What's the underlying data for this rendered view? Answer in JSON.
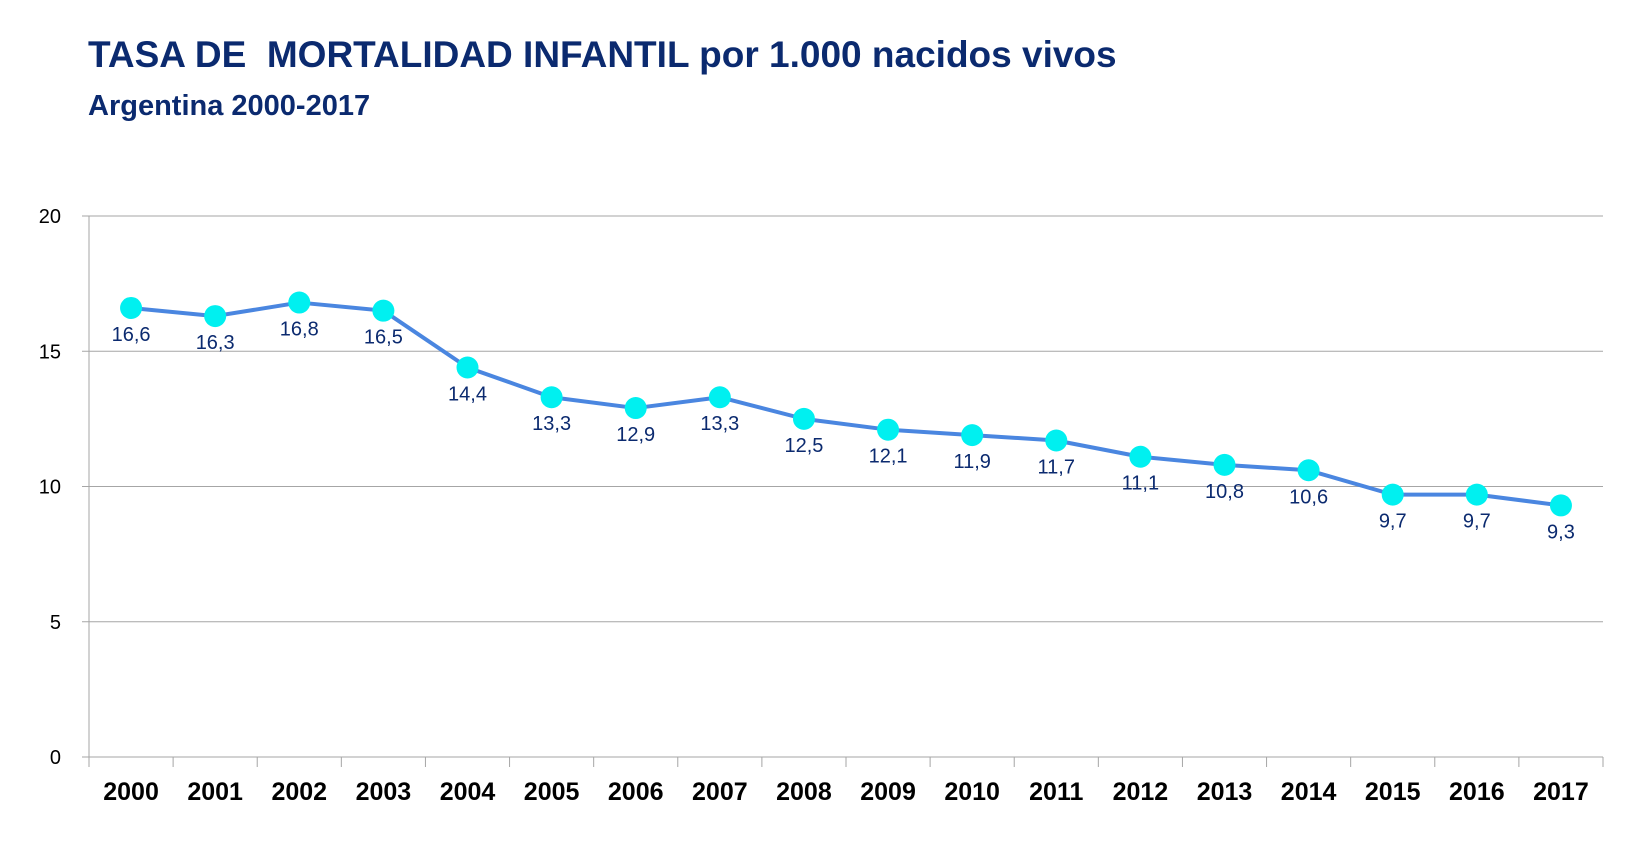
{
  "chart_data": {
    "type": "line",
    "title": "TASA DE  MORTALIDAD INFANTIL por 1.000 nacidos vivos",
    "subtitle": "Argentina 2000-2017",
    "xlabel": "",
    "ylabel": "",
    "ylim": [
      0,
      20
    ],
    "yticks": [
      "0",
      "5",
      "10",
      "15",
      "20"
    ],
    "grid": true,
    "legend": "none",
    "categories": [
      "2000",
      "2001",
      "2002",
      "2003",
      "2004",
      "2005",
      "2006",
      "2007",
      "2008",
      "2009",
      "2010",
      "2011",
      "2012",
      "2013",
      "2014",
      "2015",
      "2016",
      "2017"
    ],
    "series": [
      {
        "values": [
          16.6,
          16.3,
          16.8,
          16.5,
          14.4,
          13.3,
          12.9,
          13.3,
          12.5,
          12.1,
          11.9,
          11.7,
          11.1,
          10.8,
          10.6,
          9.7,
          9.7,
          9.3
        ],
        "labels": [
          "16,6",
          "16,3",
          "16,8",
          "16,5",
          "14,4",
          "13,3",
          "12,9",
          "13,3",
          "12,5",
          "12,1",
          "11,9",
          "11,7",
          "11,1",
          "10,8",
          "10,6",
          "9,7",
          "9,7",
          "9,3"
        ],
        "line_color": "#4a86e0",
        "marker_color": "#00f0f0"
      }
    ],
    "label_color": "#0b2a6f",
    "title_color": "#0b2a6f",
    "grid_color": "#a6a6a6"
  }
}
